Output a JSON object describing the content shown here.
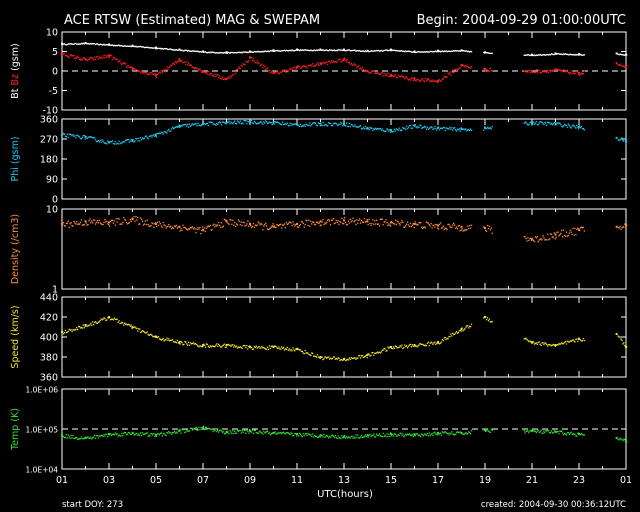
{
  "header": {
    "title": "ACE RTSW (Estimated) MAG & SWEPAM",
    "begin": "Begin: 2004-09-29 01:00:00UTC"
  },
  "footer": {
    "start_doy": "start DOY: 273",
    "created": "created: 2004-09-30 00:36:12UTC"
  },
  "colors": {
    "background": "#000000",
    "axes": "#ffffff",
    "bt": "#ffffff",
    "bz": "#ff2020",
    "phi": "#20c8f0",
    "density": "#ff8c3c",
    "speed": "#f0e030",
    "temp": "#30e030"
  },
  "chart_data": [
    {
      "type": "scatter",
      "panel": "mag",
      "ylabel_parts": [
        "Bt",
        "Bz",
        "(gsm)"
      ],
      "ylim": [
        -10,
        10
      ],
      "yticks": [
        10,
        5,
        0,
        -5,
        -10
      ],
      "dashed_reference": 0,
      "x_unit": "UTC hours since 2004-09-29 01:00",
      "gaps": [
        [
          17.4,
          17.9
        ],
        [
          18.3,
          19.6
        ],
        [
          22.2,
          23.6
        ]
      ],
      "series": [
        {
          "name": "Bt",
          "x": [
            0,
            1,
            2,
            3,
            4,
            5,
            6,
            7,
            8,
            9,
            10,
            11,
            12,
            13,
            14,
            15,
            16,
            17,
            18,
            20,
            21,
            22,
            23.6,
            24
          ],
          "y": [
            7,
            7.2,
            6.8,
            6.5,
            6,
            5.5,
            5,
            4.8,
            5,
            5.3,
            5.5,
            5.5,
            5.5,
            5.2,
            5.5,
            5,
            5.2,
            5.3,
            4.8,
            4.2,
            4.5,
            4.3,
            4.5,
            4.2
          ]
        },
        {
          "name": "Bz",
          "x": [
            0,
            1,
            2,
            3,
            4,
            5,
            6,
            7,
            8,
            9,
            10,
            11,
            12,
            13,
            14,
            15,
            16,
            17,
            18,
            20,
            21,
            22,
            23.6,
            24
          ],
          "y": [
            4.5,
            3,
            4,
            0.5,
            -1,
            3,
            0,
            -2,
            3.5,
            -0.5,
            1,
            2,
            3,
            0,
            -1,
            -2,
            -2.5,
            1.5,
            0.5,
            0,
            0.3,
            -0.5,
            2,
            1
          ]
        }
      ]
    },
    {
      "type": "scatter",
      "panel": "phi",
      "ylabel": "Phi (gsm)",
      "ylim": [
        0,
        360
      ],
      "yticks": [
        360,
        270,
        180,
        90,
        0
      ],
      "x_unit": "UTC hours since 2004-09-29 01:00",
      "gaps": [
        [
          17.4,
          17.9
        ],
        [
          18.3,
          19.6
        ],
        [
          22.2,
          23.6
        ]
      ],
      "series": [
        {
          "name": "Phi",
          "x": [
            0,
            1,
            2,
            3,
            4,
            5,
            6,
            7,
            8,
            9,
            10,
            11,
            12,
            13,
            14,
            15,
            16,
            17,
            18,
            20,
            21,
            22,
            23.6,
            24
          ],
          "y": [
            290,
            280,
            255,
            265,
            290,
            330,
            340,
            345,
            350,
            345,
            335,
            340,
            340,
            320,
            310,
            330,
            320,
            315,
            320,
            345,
            340,
            325,
            275,
            265
          ]
        }
      ]
    },
    {
      "type": "scatter",
      "panel": "density",
      "ylabel": "Density (/cm3)",
      "yscale": "log",
      "ylim": [
        1,
        10
      ],
      "yticks": [
        10,
        1
      ],
      "x_unit": "UTC hours since 2004-09-29 01:00",
      "gaps": [
        [
          17.4,
          17.9
        ],
        [
          18.3,
          19.6
        ],
        [
          22.2,
          23.6
        ]
      ],
      "series": [
        {
          "name": "Density",
          "x": [
            0,
            1,
            2,
            3,
            4,
            5,
            6,
            7,
            8,
            9,
            10,
            11,
            12,
            13,
            14,
            15,
            16,
            17,
            18,
            20,
            21,
            22,
            23.6,
            24
          ],
          "y": [
            6.5,
            7,
            6.8,
            7.5,
            6.5,
            6,
            5.5,
            7,
            6.5,
            6,
            6.5,
            7,
            7.2,
            7,
            6.8,
            6.5,
            6.2,
            6,
            5.8,
            4.2,
            4.8,
            5.5,
            6,
            6.2
          ]
        }
      ]
    },
    {
      "type": "scatter",
      "panel": "speed",
      "ylabel": "Speed (km/s)",
      "ylim": [
        360,
        440
      ],
      "yticks": [
        440,
        420,
        400,
        380,
        360
      ],
      "x_unit": "UTC hours since 2004-09-29 01:00",
      "gaps": [
        [
          17.4,
          17.9
        ],
        [
          18.3,
          19.6
        ],
        [
          22.2,
          23.6
        ]
      ],
      "series": [
        {
          "name": "Speed",
          "x": [
            0,
            1,
            2,
            3,
            4,
            5,
            6,
            7,
            8,
            9,
            10,
            11,
            12,
            13,
            14,
            15,
            16,
            17,
            18,
            20,
            21,
            22,
            23.6,
            24
          ],
          "y": [
            405,
            412,
            420,
            410,
            400,
            395,
            392,
            392,
            390,
            390,
            388,
            380,
            378,
            382,
            390,
            392,
            395,
            408,
            420,
            395,
            392,
            398,
            403,
            390
          ]
        }
      ]
    },
    {
      "type": "scatter",
      "panel": "temp",
      "ylabel": "Temp (K)",
      "yscale": "log",
      "ylim": [
        10000,
        1000000
      ],
      "yticks": [
        "1.0E+06",
        "1.0E+05",
        "1.0E+04"
      ],
      "dashed_reference": 100000,
      "x_unit": "UTC hours since 2004-09-29 01:00",
      "gaps": [
        [
          17.4,
          17.9
        ],
        [
          18.3,
          19.6
        ],
        [
          22.2,
          23.6
        ]
      ],
      "series": [
        {
          "name": "Temp",
          "x": [
            0,
            1,
            2,
            3,
            4,
            5,
            6,
            7,
            8,
            9,
            10,
            11,
            12,
            13,
            14,
            15,
            16,
            17,
            18,
            20,
            21,
            22,
            23.6,
            24
          ],
          "y": [
            70000,
            60000,
            75000,
            80000,
            72000,
            90000,
            110000,
            85000,
            90000,
            80000,
            75000,
            70000,
            65000,
            70000,
            75000,
            72000,
            80000,
            80000,
            95000,
            90000,
            85000,
            75000,
            60000,
            50000
          ]
        }
      ]
    }
  ],
  "x_axis": {
    "label": "UTC(hours)",
    "tick_labels": [
      "01",
      "03",
      "05",
      "07",
      "09",
      "11",
      "13",
      "15",
      "17",
      "19",
      "21",
      "23",
      "01"
    ],
    "range_hours": [
      0,
      24
    ]
  }
}
